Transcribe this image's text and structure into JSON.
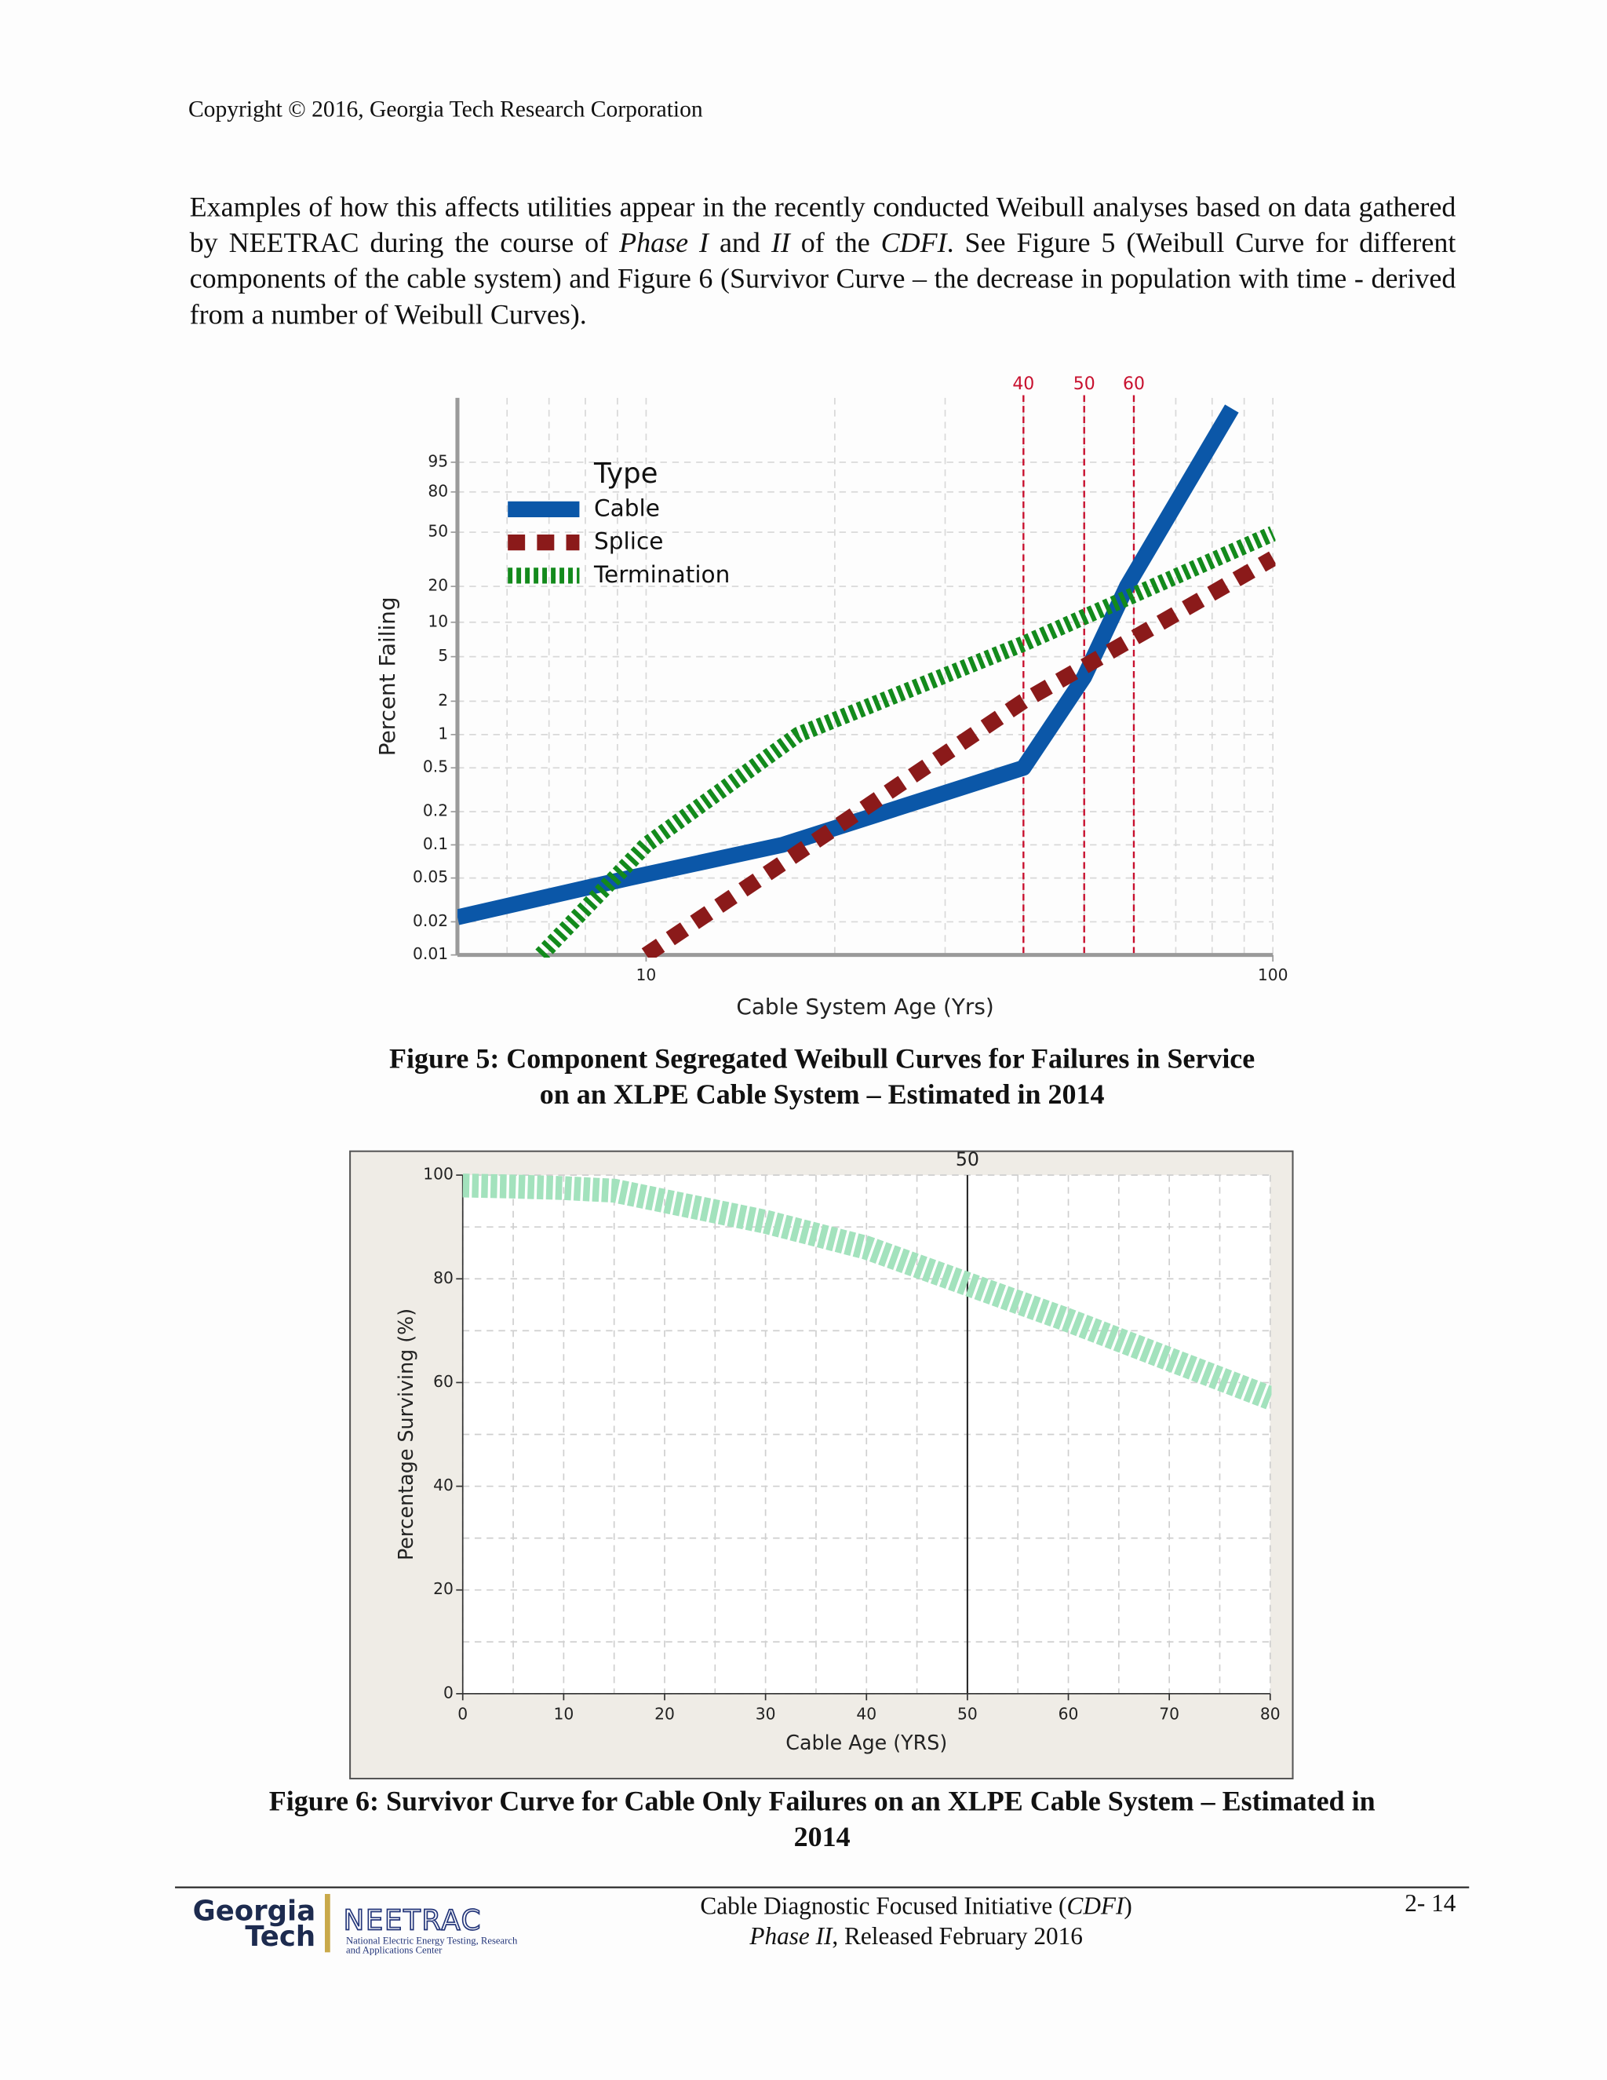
{
  "header": {
    "copyright": "Copyright © 2016, Georgia Tech Research Corporation"
  },
  "paragraph": [
    "Examples of how this affects utilities appear in the recently conducted Weibull analyses based on data gathered by NEETRAC during the course of ",
    "Phase I",
    " and ",
    "II",
    " of the ",
    "CDFI",
    ". See Figure 5 (Weibull Curve for different components of the cable system) and Figure 6 (Survivor Curve – the decrease in population with time - derived from a number of Weibull Curves)."
  ],
  "chart_data": [
    {
      "type": "line",
      "x_label": "Cable System Age (Yrs)",
      "y_label": "Percent Failing",
      "xscale": "log",
      "yscale": "weibull",
      "xlim": [
        5,
        100
      ],
      "xticks": [
        10,
        100
      ],
      "xgrid": [
        6,
        7,
        8,
        9,
        20,
        30,
        40,
        50,
        60,
        70,
        80,
        90
      ],
      "ylim": [
        0.01,
        99.999
      ],
      "yticks": [
        0.01,
        0.02,
        0.05,
        0.1,
        0.2,
        0.5,
        1,
        2,
        5,
        10,
        20,
        50,
        80,
        95
      ],
      "grid": true,
      "legend_title": "Type",
      "reference_lines": {
        "values": [
          40,
          50,
          60
        ],
        "color": "#c8102e"
      },
      "series": [
        {
          "name": "Cable",
          "color": "#0b57a8",
          "line_style": "solid",
          "x": [
            5,
            9.4,
            16.5,
            40,
            50,
            58.5,
            86
          ],
          "values": [
            0.022,
            0.05,
            0.1,
            0.5,
            3.3,
            20,
            99.99
          ]
        },
        {
          "name": "Splice",
          "color": "#8b1a1a",
          "line_style": "dashed",
          "x": [
            10,
            40,
            100
          ],
          "values": [
            0.01,
            2,
            33
          ]
        },
        {
          "name": "Termination",
          "color": "#138a1c",
          "line_style": "dotted",
          "x": [
            6.8,
            10,
            17.5,
            40,
            100
          ],
          "values": [
            0.01,
            0.1,
            1,
            6.5,
            49
          ]
        }
      ]
    },
    {
      "type": "line",
      "x_label": "Cable Age (YRS)",
      "y_label": "Percentage Surviving (%)",
      "xlim": [
        0,
        80
      ],
      "xticks": [
        0,
        10,
        20,
        30,
        40,
        50,
        60,
        70,
        80
      ],
      "xgrid": [
        5,
        15,
        25,
        35,
        45,
        55,
        65,
        75
      ],
      "ylim": [
        0,
        100
      ],
      "yticks": [
        0,
        20,
        40,
        60,
        80,
        100
      ],
      "ygrid": [
        10,
        30,
        50,
        70,
        90
      ],
      "grid": true,
      "reference_lines": {
        "values": [
          50
        ],
        "color": "#222222"
      },
      "series": [
        {
          "color": "#a3e2bd",
          "line_style": "hatched",
          "x": [
            0,
            5,
            10,
            15,
            20,
            30,
            40,
            50,
            60,
            70,
            80
          ],
          "values": [
            98,
            97.8,
            97.5,
            97,
            95,
            91,
            86,
            79,
            72,
            64.5,
            57
          ]
        }
      ]
    }
  ],
  "captions": [
    [
      "Figure 5: Component Segregated Weibull Curves for Failures in Service",
      "on an XLPE Cable System – Estimated in 2014"
    ],
    [
      "Figure 6: Survivor Curve for Cable Only Failures on an XLPE Cable System – Estimated in",
      "2014"
    ]
  ],
  "footer": {
    "logo": {
      "line1": "Georgia",
      "line2": "Tech",
      "org": "NEETRAC",
      "org_full": [
        "National Electric Energy Testing, Research",
        "and Applications Center"
      ]
    },
    "center": [
      [
        "Cable Diagnostic Focused Initiative (",
        "CDFI",
        ")"
      ],
      [
        "Phase II",
        ", Released February 2016"
      ]
    ],
    "page": "2- 14"
  }
}
